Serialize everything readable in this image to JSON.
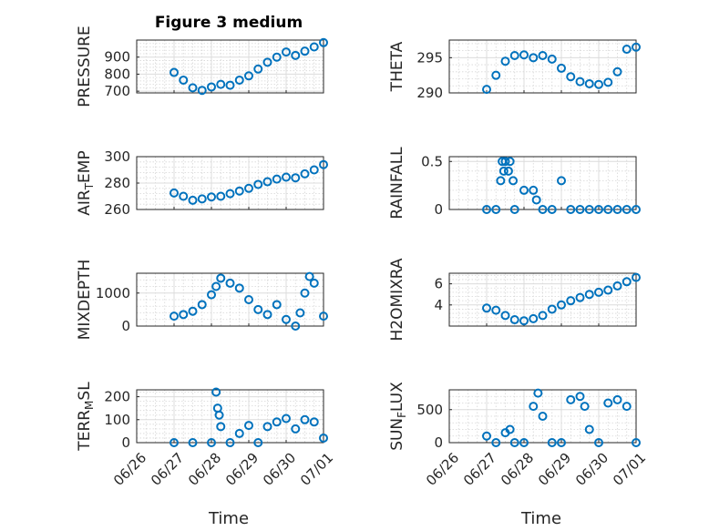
{
  "figure": {
    "title": "Figure 3 medium",
    "xlabel": "Time"
  },
  "colors": {
    "marker": "#0072BD"
  },
  "chart_data": [
    {
      "type": "scatter",
      "ylabel": "PRESSURE",
      "ylim": [
        690,
        1000
      ],
      "yticks": [
        700,
        800,
        900
      ],
      "ytick_labels": [
        "700",
        "800",
        "900"
      ],
      "xlim": [
        "06/26",
        "07/01"
      ],
      "x": [
        "06/27 00:00",
        "06/27 06:00",
        "06/27 12:00",
        "06/27 18:00",
        "06/28 00:00",
        "06/28 06:00",
        "06/28 12:00",
        "06/28 18:00",
        "06/29 00:00",
        "06/29 06:00",
        "06/29 12:00",
        "06/29 18:00",
        "06/30 00:00",
        "06/30 06:00",
        "06/30 12:00",
        "06/30 18:00",
        "07/01 00:00"
      ],
      "y": [
        810,
        765,
        720,
        705,
        725,
        740,
        735,
        765,
        790,
        830,
        870,
        900,
        930,
        910,
        935,
        960,
        985
      ]
    },
    {
      "type": "scatter",
      "ylabel": "THETA",
      "ylim": [
        290,
        297.5
      ],
      "yticks": [
        290,
        295
      ],
      "ytick_labels": [
        "290",
        "295"
      ],
      "xlim": [
        "06/26",
        "07/01"
      ],
      "x": [
        "06/27 00:00",
        "06/27 06:00",
        "06/27 12:00",
        "06/27 18:00",
        "06/28 00:00",
        "06/28 06:00",
        "06/28 12:00",
        "06/28 18:00",
        "06/29 00:00",
        "06/29 06:00",
        "06/29 12:00",
        "06/29 18:00",
        "06/30 00:00",
        "06/30 06:00",
        "06/30 12:00",
        "06/30 18:00",
        "07/01 00:00"
      ],
      "y": [
        290.5,
        292.5,
        294.5,
        295.3,
        295.4,
        295.0,
        295.3,
        294.8,
        293.5,
        292.3,
        291.6,
        291.3,
        291.2,
        291.5,
        293.0,
        296.2,
        296.5
      ]
    },
    {
      "type": "scatter",
      "ylabel": "AIR_TEMP",
      "ylim": [
        260,
        300
      ],
      "yticks": [
        260,
        280,
        300
      ],
      "ytick_labels": [
        "260",
        "280",
        "300"
      ],
      "xlim": [
        "06/26",
        "07/01"
      ],
      "x": [
        "06/27 00:00",
        "06/27 06:00",
        "06/27 12:00",
        "06/27 18:00",
        "06/28 00:00",
        "06/28 06:00",
        "06/28 12:00",
        "06/28 18:00",
        "06/29 00:00",
        "06/29 06:00",
        "06/29 12:00",
        "06/29 18:00",
        "06/30 00:00",
        "06/30 06:00",
        "06/30 12:00",
        "06/30 18:00",
        "07/01 00:00"
      ],
      "y": [
        272.5,
        270,
        267,
        268,
        269.5,
        270,
        272,
        274,
        276,
        279,
        281,
        283,
        284.5,
        284,
        287,
        290,
        294
      ]
    },
    {
      "type": "scatter",
      "ylabel": "RAINFALL",
      "ylim": [
        0,
        0.55
      ],
      "yticks": [
        0,
        0.5
      ],
      "ytick_labels": [
        "0",
        "0.5"
      ],
      "xlim": [
        "06/26",
        "07/01"
      ],
      "x": [
        "06/27 00:00",
        "06/27 06:00",
        "06/27 09:00",
        "06/27 10:00",
        "06/27 11:00",
        "06/27 12:00",
        "06/27 14:00",
        "06/27 15:00",
        "06/27 17:00",
        "06/27 18:00",
        "06/28 00:00",
        "06/28 06:00",
        "06/28 08:00",
        "06/28 12:00",
        "06/28 18:00",
        "06/29 00:00",
        "06/29 06:00",
        "06/29 12:00",
        "06/29 18:00",
        "06/30 00:00",
        "06/30 06:00",
        "06/30 12:00",
        "06/30 18:00",
        "07/01 00:00"
      ],
      "y": [
        0,
        0,
        0.3,
        0.5,
        0.4,
        0.5,
        0.4,
        0.5,
        0.3,
        0,
        0.2,
        0.2,
        0.1,
        0,
        0,
        0.3,
        0,
        0,
        0,
        0,
        0,
        0,
        0,
        0
      ]
    },
    {
      "type": "scatter",
      "ylabel": "MIXDEPTH",
      "ylim": [
        0,
        1600
      ],
      "yticks": [
        0,
        1000
      ],
      "ytick_labels": [
        "0",
        "1000"
      ],
      "xlim": [
        "06/26",
        "07/01"
      ],
      "x": [
        "06/27 00:00",
        "06/27 06:00",
        "06/27 12:00",
        "06/27 18:00",
        "06/28 00:00",
        "06/28 03:00",
        "06/28 06:00",
        "06/28 12:00",
        "06/28 18:00",
        "06/29 00:00",
        "06/29 06:00",
        "06/29 12:00",
        "06/29 18:00",
        "06/30 00:00",
        "06/30 06:00",
        "06/30 09:00",
        "06/30 12:00",
        "06/30 15:00",
        "06/30 18:00",
        "07/01 00:00"
      ],
      "y": [
        300,
        350,
        450,
        650,
        950,
        1200,
        1450,
        1300,
        1150,
        800,
        500,
        350,
        650,
        200,
        0,
        400,
        1000,
        1500,
        1300,
        300
      ]
    },
    {
      "type": "scatter",
      "ylabel": "H2OMIXRA",
      "ylim": [
        2,
        7
      ],
      "yticks": [
        4,
        6
      ],
      "ytick_labels": [
        "4",
        "6"
      ],
      "xlim": [
        "06/26",
        "07/01"
      ],
      "x": [
        "06/27 00:00",
        "06/27 06:00",
        "06/27 12:00",
        "06/27 18:00",
        "06/28 00:00",
        "06/28 06:00",
        "06/28 12:00",
        "06/28 18:00",
        "06/29 00:00",
        "06/29 06:00",
        "06/29 12:00",
        "06/29 18:00",
        "06/30 00:00",
        "06/30 06:00",
        "06/30 12:00",
        "06/30 18:00",
        "07/01 00:00"
      ],
      "y": [
        3.7,
        3.5,
        3.0,
        2.6,
        2.5,
        2.7,
        3.0,
        3.6,
        4.0,
        4.4,
        4.7,
        5.0,
        5.2,
        5.4,
        5.8,
        6.2,
        6.6
      ]
    },
    {
      "type": "scatter",
      "ylabel": "TERR_MSL",
      "ylim": [
        0,
        230
      ],
      "yticks": [
        0,
        100,
        200
      ],
      "ytick_labels": [
        "0",
        "100",
        "200"
      ],
      "xlim": [
        "06/26",
        "07/01"
      ],
      "xticks": [
        "06/26",
        "06/27",
        "06/28",
        "06/29",
        "06/30",
        "07/01"
      ],
      "x": [
        "06/27 00:00",
        "06/27 12:00",
        "06/28 00:00",
        "06/28 03:00",
        "06/28 04:00",
        "06/28 05:00",
        "06/28 06:00",
        "06/28 12:00",
        "06/28 18:00",
        "06/29 00:00",
        "06/29 06:00",
        "06/29 12:00",
        "06/29 18:00",
        "06/30 00:00",
        "06/30 06:00",
        "06/30 12:00",
        "06/30 18:00",
        "07/01 00:00"
      ],
      "y": [
        0,
        0,
        0,
        220,
        150,
        120,
        70,
        0,
        40,
        75,
        0,
        70,
        90,
        105,
        60,
        100,
        90,
        20
      ]
    },
    {
      "type": "scatter",
      "ylabel": "SUN_FLUX",
      "ylim": [
        0,
        800
      ],
      "yticks": [
        0,
        500
      ],
      "ytick_labels": [
        "0",
        "500"
      ],
      "xlim": [
        "06/26",
        "07/01"
      ],
      "xticks": [
        "06/26",
        "06/27",
        "06/28",
        "06/29",
        "06/30",
        "07/01"
      ],
      "x": [
        "06/27 00:00",
        "06/27 06:00",
        "06/27 12:00",
        "06/27 15:00",
        "06/27 18:00",
        "06/28 00:00",
        "06/28 06:00",
        "06/28 09:00",
        "06/28 12:00",
        "06/28 18:00",
        "06/29 00:00",
        "06/29 06:00",
        "06/29 12:00",
        "06/29 15:00",
        "06/29 18:00",
        "06/30 00:00",
        "06/30 06:00",
        "06/30 12:00",
        "06/30 18:00",
        "07/01 00:00"
      ],
      "y": [
        100,
        0,
        150,
        200,
        0,
        0,
        550,
        750,
        400,
        0,
        0,
        650,
        700,
        550,
        200,
        0,
        600,
        650,
        550,
        0
      ]
    }
  ]
}
